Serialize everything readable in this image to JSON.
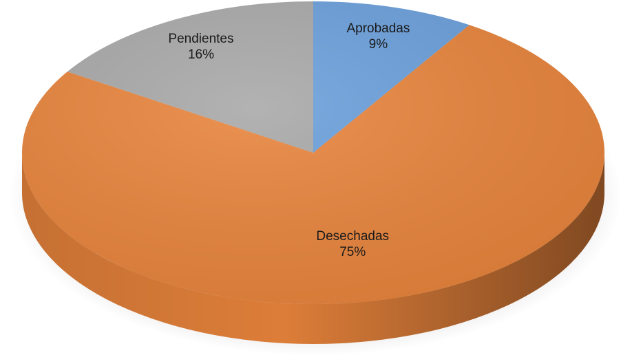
{
  "chart_data": {
    "type": "pie",
    "categories": [
      "Aprobadas",
      "Desechadas",
      "Pendientes"
    ],
    "values": [
      9,
      75,
      16
    ],
    "value_labels": [
      "9%",
      "75%",
      "16%"
    ],
    "colors": [
      "#6a9fdb",
      "#e8843c",
      "#a8a8a8"
    ]
  }
}
